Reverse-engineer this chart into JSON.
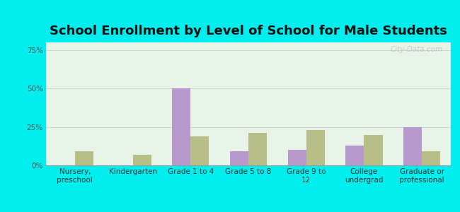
{
  "title": "School Enrollment by Level of School for Male Students",
  "categories": [
    "Nursery,\npreschool",
    "Kindergarten",
    "Grade 1 to 4",
    "Grade 5 to 8",
    "Grade 9 to\n12",
    "College\nundergrad",
    "Graduate or\nprofessional"
  ],
  "westbrook": [
    0,
    0,
    50,
    9,
    10,
    13,
    25
  ],
  "connecticut": [
    9,
    7,
    19,
    21,
    23,
    20,
    9
  ],
  "westbrook_color": "#b899cc",
  "connecticut_color": "#b8be88",
  "bar_width": 0.32,
  "ylim": [
    0,
    80
  ],
  "yticks": [
    0,
    25,
    50,
    75
  ],
  "ytick_labels": [
    "0%",
    "25%",
    "50%",
    "75%"
  ],
  "outer_bg": "#00eeee",
  "plot_bg_top": "#e0f0e8",
  "plot_bg_bottom": "#f0f8ee",
  "title_fontsize": 13,
  "tick_fontsize": 7.5,
  "legend_fontsize": 9,
  "watermark": "City-Data.com",
  "grid_color": "#cccccc"
}
